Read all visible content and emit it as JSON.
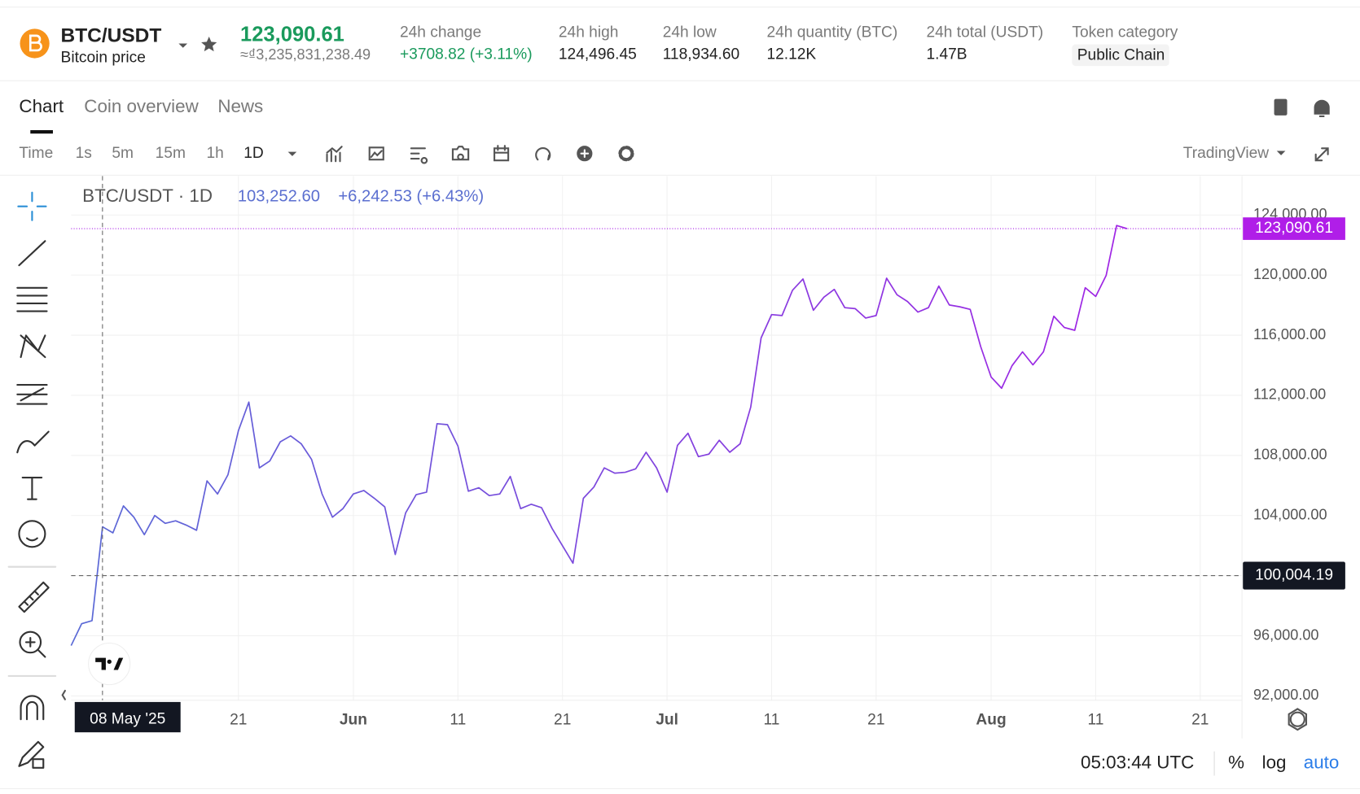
{
  "header": {
    "symbol": "BTC/USDT",
    "name": "Bitcoin price",
    "price": "123,090.61",
    "price_local": "≈₫3,235,831,238.49",
    "stats": [
      {
        "label": "24h change",
        "value": "+3708.82 (+3.11%)"
      },
      {
        "label": "24h high",
        "value": "124,496.45"
      },
      {
        "label": "24h low",
        "value": "118,934.60"
      },
      {
        "label": "24h quantity (BTC)",
        "value": "12.12K"
      },
      {
        "label": "24h total (USDT)",
        "value": "1.47B"
      }
    ],
    "token_category": {
      "label": "Token category",
      "value": "Public Chain"
    }
  },
  "tabs": [
    "Chart",
    "Coin overview",
    "News"
  ],
  "intervals": [
    "Time",
    "1s",
    "5m",
    "15m",
    "1h",
    "1D"
  ],
  "chart_provider": "TradingView",
  "chart_data": {
    "type": "line",
    "title": "BTC/USDT · 1D",
    "readout": {
      "close": "103,252.60",
      "change": "+6,242.53 (+6.43%)"
    },
    "x": [
      "2025-05-05",
      "2025-05-06",
      "2025-05-07",
      "2025-05-08",
      "2025-05-09",
      "2025-05-10",
      "2025-05-11",
      "2025-05-12",
      "2025-05-13",
      "2025-05-14",
      "2025-05-15",
      "2025-05-16",
      "2025-05-17",
      "2025-05-18",
      "2025-05-19",
      "2025-05-20",
      "2025-05-21",
      "2025-05-22",
      "2025-05-23",
      "2025-05-24",
      "2025-05-25",
      "2025-05-26",
      "2025-05-27",
      "2025-05-28",
      "2025-05-29",
      "2025-05-30",
      "2025-05-31",
      "2025-06-01",
      "2025-06-02",
      "2025-06-03",
      "2025-06-04",
      "2025-06-05",
      "2025-06-06",
      "2025-06-07",
      "2025-06-08",
      "2025-06-09",
      "2025-06-10",
      "2025-06-11",
      "2025-06-12",
      "2025-06-13",
      "2025-06-14",
      "2025-06-15",
      "2025-06-16",
      "2025-06-17",
      "2025-06-18",
      "2025-06-19",
      "2025-06-20",
      "2025-06-21",
      "2025-06-22",
      "2025-06-23",
      "2025-06-24",
      "2025-06-25",
      "2025-06-26",
      "2025-06-27",
      "2025-06-28",
      "2025-06-29",
      "2025-06-30",
      "2025-07-01",
      "2025-07-02",
      "2025-07-03",
      "2025-07-04",
      "2025-07-05",
      "2025-07-06",
      "2025-07-07",
      "2025-07-08",
      "2025-07-09",
      "2025-07-10",
      "2025-07-11",
      "2025-07-12",
      "2025-07-13",
      "2025-07-14",
      "2025-07-15",
      "2025-07-16",
      "2025-07-17",
      "2025-07-18",
      "2025-07-19",
      "2025-07-20",
      "2025-07-21",
      "2025-07-22",
      "2025-07-23",
      "2025-07-24",
      "2025-07-25",
      "2025-07-26",
      "2025-07-27",
      "2025-07-28",
      "2025-07-29",
      "2025-07-30",
      "2025-07-31",
      "2025-08-01",
      "2025-08-02",
      "2025-08-03",
      "2025-08-04",
      "2025-08-05",
      "2025-08-06",
      "2025-08-07",
      "2025-08-08",
      "2025-08-09",
      "2025-08-10",
      "2025-08-11",
      "2025-08-12",
      "2025-08-13",
      "2025-08-14"
    ],
    "values": [
      95350,
      96800,
      97010.07,
      103252.6,
      102850,
      104640,
      103890,
      102730,
      104000,
      103480,
      103650,
      103370,
      103020,
      106310,
      105440,
      106710,
      109650,
      111550,
      107170,
      107630,
      108900,
      109300,
      108780,
      107740,
      105440,
      103890,
      104460,
      105440,
      105670,
      105150,
      104580,
      101410,
      104180,
      105390,
      105560,
      110110,
      110050,
      108620,
      105620,
      105850,
      105330,
      105440,
      106600,
      104460,
      104750,
      104520,
      103140,
      101990,
      100830,
      105150,
      105900,
      107170,
      106820,
      106880,
      107110,
      108210,
      107170,
      105560,
      108670,
      109480,
      107920,
      108090,
      109010,
      108210,
      108780,
      111210,
      115820,
      117370,
      117310,
      118990,
      119740,
      117660,
      118530,
      119050,
      117830,
      117770,
      117140,
      117310,
      119790,
      118690,
      118240,
      117540,
      117830,
      119270,
      118010,
      117890,
      117720,
      115240,
      113220,
      112470,
      113970,
      114890,
      114030,
      114890,
      117260,
      116510,
      116330,
      119160,
      118580,
      119970,
      123300,
      123090.61
    ],
    "colors": [
      "#5a6ad6",
      "#a81de6"
    ],
    "xlim": [
      "2025-05-05",
      "2025-08-25"
    ],
    "xticks": [
      {
        "value": "2025-05-21",
        "label": "21"
      },
      {
        "value": "2025-06-01",
        "label": "Jun"
      },
      {
        "value": "2025-06-11",
        "label": "11"
      },
      {
        "value": "2025-06-21",
        "label": "21"
      },
      {
        "value": "2025-07-01",
        "label": "Jul"
      },
      {
        "value": "2025-07-11",
        "label": "11"
      },
      {
        "value": "2025-07-21",
        "label": "21"
      },
      {
        "value": "2025-08-01",
        "label": "Aug"
      },
      {
        "value": "2025-08-11",
        "label": "11"
      },
      {
        "value": "2025-08-21",
        "label": "21"
      }
    ],
    "ylim": [
      91710,
      126590
    ],
    "yticks": [
      {
        "value": 92000,
        "label": "92,000.00"
      },
      {
        "value": 96000,
        "label": "96,000.00"
      },
      {
        "value": 100000,
        "label": "100,000.00"
      },
      {
        "value": 104000,
        "label": "104,000.00"
      },
      {
        "value": 108000,
        "label": "108,000.00"
      },
      {
        "value": 112000,
        "label": "112,000.00"
      },
      {
        "value": 116000,
        "label": "116,000.00"
      },
      {
        "value": 120000,
        "label": "120,000.00"
      },
      {
        "value": 124000,
        "label": "124,000.00"
      }
    ],
    "grid": true,
    "last_label": "123,090.61",
    "crosshair": {
      "x": "2025-05-08",
      "x_label": "08 May '25",
      "y": 100004.19,
      "y_label": "100,004.19"
    }
  },
  "footer": {
    "time": "05:03:44 UTC",
    "scale_options": [
      "%",
      "log",
      "auto"
    ]
  }
}
